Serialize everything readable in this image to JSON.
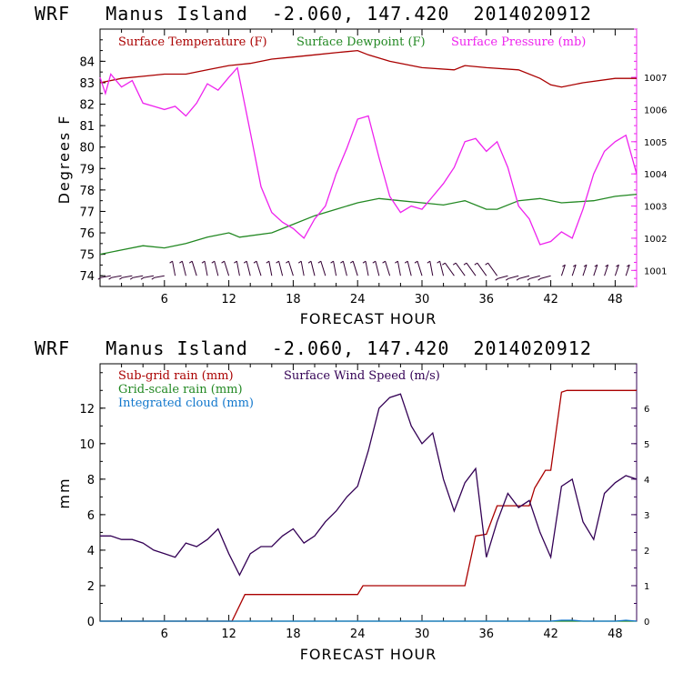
{
  "chart_data": [
    {
      "type": "line",
      "title": "WRF   Manus Island  -2.060, 147.420  2014020912",
      "xlabel": "FORECAST HOUR",
      "ylabel": "Degrees F",
      "xlim": [
        0,
        50
      ],
      "ylim": [
        73.5,
        85.5
      ],
      "y2lim": [
        1000.5,
        1008.5
      ],
      "xticks": [
        "6",
        "12",
        "18",
        "24",
        "30",
        "36",
        "42",
        "48"
      ],
      "yticks": [
        "74",
        "75",
        "76",
        "77",
        "78",
        "79",
        "80",
        "81",
        "82",
        "83",
        "84"
      ],
      "y2ticks": [
        "1001",
        "1002",
        "1003",
        "1004",
        "1005",
        "1006",
        "1007"
      ],
      "series": [
        {
          "name": "Surface Temperature (F)",
          "color": "#aa0000",
          "axis": "left",
          "x": [
            0,
            2,
            4,
            6,
            8,
            10,
            12,
            14,
            16,
            18,
            20,
            22,
            24,
            25,
            27,
            30,
            33,
            34,
            36,
            39,
            41,
            42,
            43,
            45,
            48,
            50
          ],
          "y": [
            83.0,
            83.2,
            83.3,
            83.4,
            83.4,
            83.6,
            83.8,
            83.9,
            84.1,
            84.2,
            84.3,
            84.4,
            84.5,
            84.3,
            84.0,
            83.7,
            83.6,
            83.8,
            83.7,
            83.6,
            83.2,
            82.9,
            82.8,
            83.0,
            83.2,
            83.2
          ]
        },
        {
          "name": "Surface Dewpoint (F)",
          "color": "#228822",
          "axis": "left",
          "x": [
            0,
            2,
            4,
            6,
            8,
            10,
            12,
            13,
            16,
            18,
            20,
            22,
            24,
            26,
            28,
            30,
            32,
            34,
            36,
            37,
            39,
            41,
            43,
            46,
            48,
            50
          ],
          "y": [
            75.0,
            75.2,
            75.4,
            75.3,
            75.5,
            75.8,
            76.0,
            75.8,
            76.0,
            76.4,
            76.8,
            77.1,
            77.4,
            77.6,
            77.5,
            77.4,
            77.3,
            77.5,
            77.1,
            77.1,
            77.5,
            77.6,
            77.4,
            77.5,
            77.7,
            77.8
          ]
        },
        {
          "name": "Surface Pressure (mb)",
          "color": "#ee22ee",
          "axis": "right",
          "x": [
            0,
            0.5,
            1,
            2,
            3,
            4,
            5,
            6,
            7,
            8,
            9,
            10,
            11,
            12,
            12.8,
            14,
            15,
            16,
            17,
            18,
            19,
            20,
            21,
            22,
            23,
            24,
            25,
            26,
            27,
            28,
            29,
            30,
            31,
            32,
            33,
            34,
            35,
            36,
            37,
            38,
            39,
            40,
            41,
            42,
            43,
            44,
            45,
            46,
            47,
            48,
            49,
            50
          ],
          "y": [
            1007.0,
            1006.5,
            1007.1,
            1006.7,
            1006.9,
            1006.2,
            1006.1,
            1006.0,
            1006.1,
            1005.8,
            1006.2,
            1006.8,
            1006.6,
            1007.0,
            1007.3,
            1005.3,
            1003.6,
            1002.8,
            1002.5,
            1002.3,
            1002.0,
            1002.6,
            1003.0,
            1004.0,
            1004.8,
            1005.7,
            1005.8,
            1004.5,
            1003.3,
            1002.8,
            1003.0,
            1002.9,
            1003.3,
            1003.7,
            1004.2,
            1005.0,
            1005.1,
            1004.7,
            1005.0,
            1004.2,
            1003.0,
            1002.6,
            1001.8,
            1001.9,
            1002.2,
            1002.0,
            1002.9,
            1004.0,
            1004.7,
            1005.0,
            1005.2,
            1004.0
          ]
        }
      ],
      "wind_barbs": {
        "color": "#330033",
        "count": 49
      }
    },
    {
      "type": "line",
      "title": "WRF   Manus Island  -2.060, 147.420  2014020912",
      "xlabel": "FORECAST HOUR",
      "ylabel": "mm",
      "xlim": [
        0,
        50
      ],
      "ylim": [
        0,
        14.5
      ],
      "y2lim": [
        0,
        7.25
      ],
      "xticks": [
        "6",
        "12",
        "18",
        "24",
        "30",
        "36",
        "42",
        "48"
      ],
      "yticks": [
        "0",
        "2",
        "4",
        "6",
        "8",
        "10",
        "12"
      ],
      "y2ticks": [
        "0",
        "1",
        "2",
        "3",
        "4",
        "5",
        "6"
      ],
      "series": [
        {
          "name": "Sub-grid rain (mm)",
          "color": "#aa0000",
          "axis": "left",
          "x": [
            0,
            12.3,
            13.5,
            20,
            24,
            24.5,
            34,
            35,
            36,
            37,
            38,
            40,
            40.5,
            41.2,
            41.5,
            42,
            43,
            43.5,
            50
          ],
          "y": [
            0,
            0,
            1.5,
            1.5,
            1.5,
            2.0,
            2.0,
            4.8,
            4.9,
            6.5,
            6.5,
            6.5,
            7.5,
            8.2,
            8.5,
            8.5,
            12.9,
            13.0,
            13.0
          ]
        },
        {
          "name": "Surface Wind Speed (m/s)",
          "color": "#330055",
          "axis": "right",
          "x": [
            0,
            1,
            2,
            3,
            4,
            5,
            6,
            7,
            8,
            9,
            10,
            11,
            12,
            13,
            14,
            15,
            16,
            17,
            18,
            19,
            20,
            21,
            22,
            23,
            24,
            25,
            26,
            27,
            28,
            29,
            30,
            31,
            32,
            33,
            34,
            35,
            36,
            37,
            38,
            39,
            40,
            41,
            42,
            43,
            44,
            45,
            46,
            47,
            48,
            49,
            50
          ],
          "y": [
            2.4,
            2.4,
            2.3,
            2.3,
            2.2,
            2.0,
            1.9,
            1.8,
            2.2,
            2.1,
            2.3,
            2.6,
            1.9,
            1.3,
            1.9,
            2.1,
            2.1,
            2.4,
            2.6,
            2.2,
            2.4,
            2.8,
            3.1,
            3.5,
            3.8,
            4.8,
            6.0,
            6.3,
            6.4,
            5.5,
            5.0,
            5.3,
            4.0,
            3.1,
            3.9,
            4.3,
            1.8,
            2.8,
            3.6,
            3.2,
            3.4,
            2.5,
            1.8,
            3.8,
            4.0,
            2.8,
            2.3,
            3.6,
            3.9,
            4.1,
            4.0
          ]
        },
        {
          "name": "Grid-scale rain (mm)",
          "color": "#228822",
          "axis": "left",
          "x": [
            0,
            50
          ],
          "y": [
            0,
            0
          ]
        },
        {
          "name": "Integrated cloud (mm)",
          "color": "#1177cc",
          "axis": "left",
          "x": [
            0,
            42,
            43,
            44,
            45,
            48,
            49,
            50
          ],
          "y": [
            0,
            0,
            0.05,
            0.05,
            0.0,
            0.0,
            0.05,
            0.0
          ]
        }
      ]
    }
  ]
}
